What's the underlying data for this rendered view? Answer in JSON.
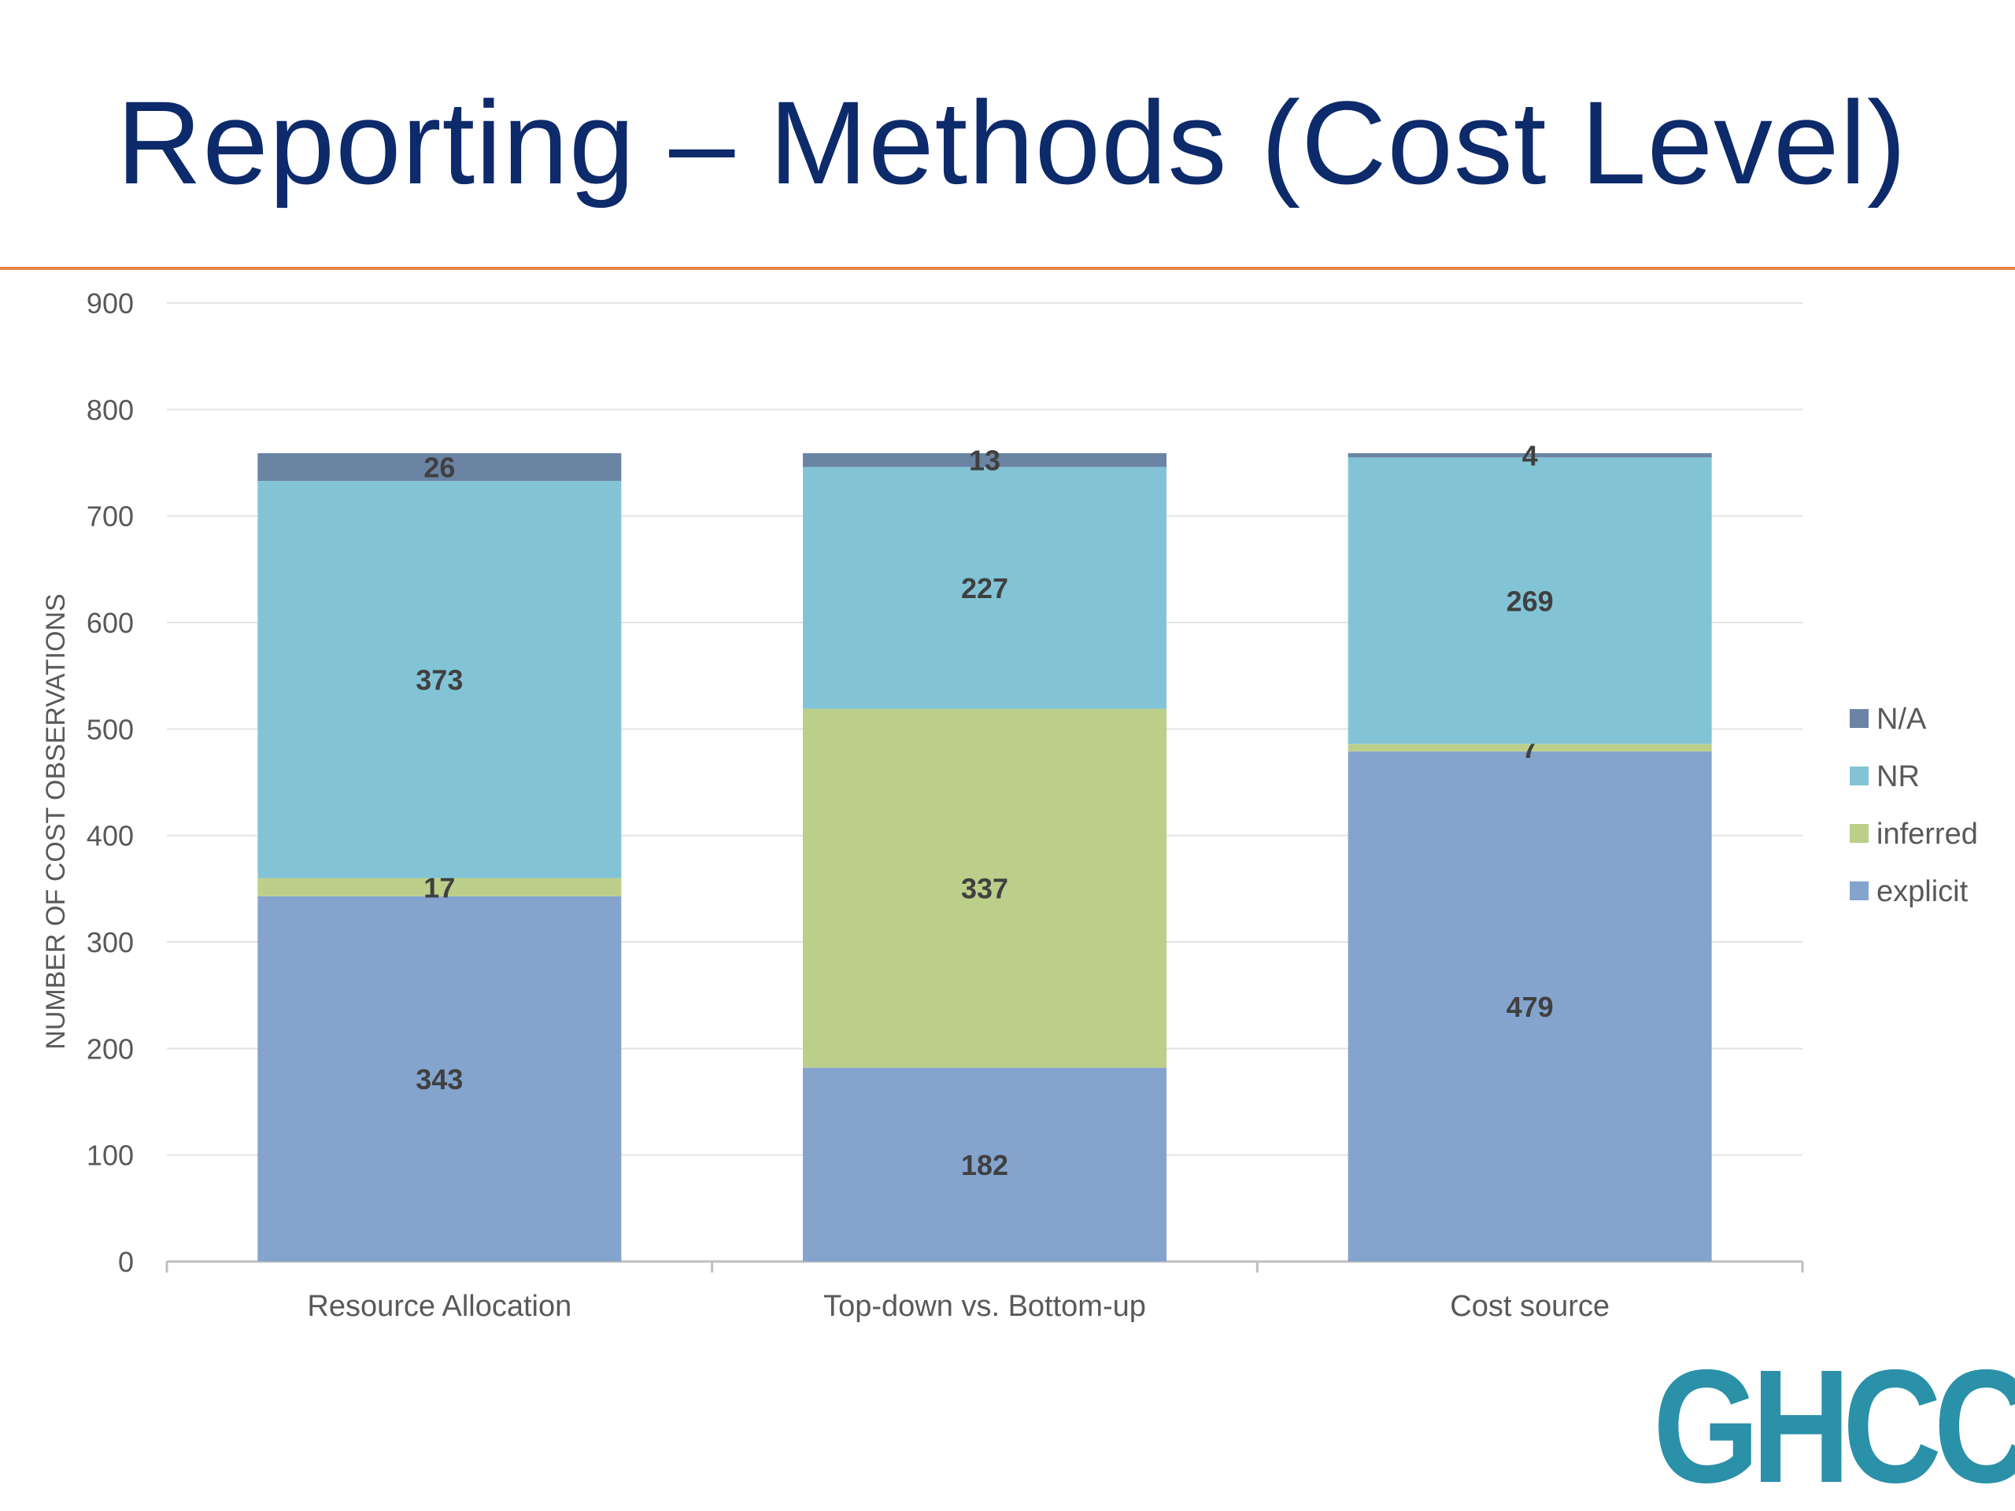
{
  "slide": {
    "title": "Reporting – Methods (Cost Level)",
    "logo_text": "GHCC",
    "accent_color": "#e8844a",
    "title_color": "#0d2a6b",
    "logo_color": "#2a91a8"
  },
  "chart_data": {
    "type": "bar",
    "stacked": true,
    "title": "",
    "xlabel": "",
    "ylabel": "NUMBER OF COST OBSERVATIONS",
    "ylim": [
      0,
      900
    ],
    "yticks": [
      0,
      100,
      200,
      300,
      400,
      500,
      600,
      700,
      800,
      900
    ],
    "grid": true,
    "legend_position": "right",
    "categories": [
      "Resource Allocation",
      "Top-down vs. Bottom-up",
      "Cost source"
    ],
    "series": [
      {
        "name": "explicit",
        "color": "#84a4ce",
        "values": [
          343,
          182,
          479
        ]
      },
      {
        "name": "inferred",
        "color": "#bccf8a",
        "values": [
          17,
          337,
          7
        ]
      },
      {
        "name": "NR",
        "color": "#82c4d6",
        "values": [
          373,
          227,
          269
        ]
      },
      {
        "name": "N/A",
        "color": "#6b84a4",
        "values": [
          26,
          13,
          4
        ]
      }
    ]
  }
}
